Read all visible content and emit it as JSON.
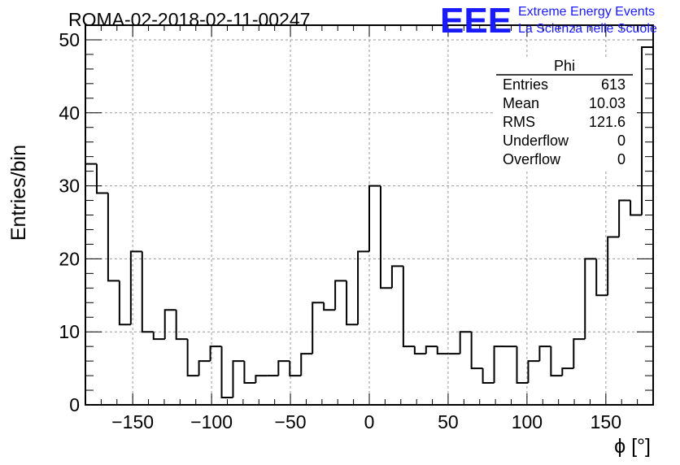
{
  "chart_data": {
    "type": "bar",
    "title": "ROMA-02-2018-02-11-00247",
    "xlabel": "ϕ [°]",
    "ylabel": "Entries/bin",
    "xlim": [
      -180,
      180
    ],
    "ylim": [
      0,
      52
    ],
    "bin_width": 7.2,
    "grid": true,
    "x_ticks": [
      "−150",
      "−100",
      "−50",
      "0",
      "50",
      "100",
      "150"
    ],
    "y_ticks": [
      "0",
      "10",
      "20",
      "30",
      "40",
      "50"
    ],
    "values": [
      33,
      29,
      17,
      11,
      21,
      10,
      9,
      13,
      9,
      4,
      6,
      8,
      1,
      6,
      3,
      4,
      4,
      6,
      4,
      7,
      14,
      13,
      17,
      11,
      21,
      30,
      16,
      19,
      8,
      7,
      8,
      7,
      7,
      10,
      5,
      3,
      8,
      8,
      3,
      6,
      8,
      4,
      5,
      9,
      20,
      15,
      23,
      28,
      26,
      49
    ],
    "stats_box": {
      "title": "Phi",
      "rows": [
        {
          "label": "Entries",
          "value": "613"
        },
        {
          "label": "Mean",
          "value": "10.03"
        },
        {
          "label": "RMS",
          "value": "121.6"
        },
        {
          "label": "Underflow",
          "value": "0"
        },
        {
          "label": "Overflow",
          "value": "0"
        }
      ]
    },
    "logo": {
      "mark": "EEE",
      "line1": "Extreme Energy Events",
      "line2": "La Scienza nelle Scuole",
      "color": "#1a1aff"
    },
    "line_color": "#000000",
    "grid_color": "#999999"
  }
}
